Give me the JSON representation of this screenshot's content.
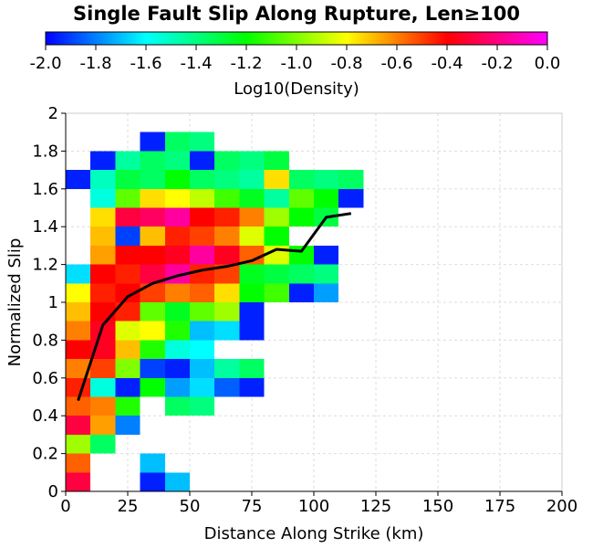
{
  "chart_data": {
    "type": "heatmap",
    "title": "Single Fault Slip Along Rupture, Len≥100",
    "xlabel": "Distance Along Strike (km)",
    "ylabel": "Normalized Slip",
    "colorbar": {
      "label": "Log10(Density)",
      "range": [
        -2.0,
        0.0
      ],
      "ticks": [
        "-2.0",
        "-1.8",
        "-1.6",
        "-1.4",
        "-1.2",
        "-1.0",
        "-0.8",
        "-0.6",
        "-0.4",
        "-0.2",
        "0.0"
      ],
      "colors": [
        "#0000ff",
        "#00ffff",
        "#00ff00",
        "#ffff00",
        "#ff0000",
        "#ff00ff"
      ]
    },
    "xlim": [
      0,
      200
    ],
    "ylim": [
      0,
      2
    ],
    "x_ticks": [
      "0",
      "25",
      "50",
      "75",
      "100",
      "125",
      "150",
      "175",
      "200"
    ],
    "y_ticks": [
      "0",
      "0.2",
      "0.4",
      "0.6",
      "0.8",
      "1",
      "1.2",
      "1.4",
      "1.6",
      "1.8",
      "2"
    ],
    "grid": true,
    "x_bin_width_km": 10,
    "y_bin_height": 0.1,
    "cell_unit_note": "each row: [y bin lower edge, [[x bin lower edge (km), log10 density], ...]]",
    "rows": [
      [
        0.0,
        [
          [
            0,
            -0.3
          ],
          [
            30,
            -1.95
          ],
          [
            40,
            -1.7
          ]
        ]
      ],
      [
        0.1,
        [
          [
            0,
            -0.55
          ],
          [
            30,
            -1.7
          ]
        ]
      ],
      [
        0.2,
        [
          [
            0,
            -0.95
          ],
          [
            10,
            -1.35
          ]
        ]
      ],
      [
        0.3,
        [
          [
            0,
            -0.3
          ],
          [
            10,
            -0.65
          ],
          [
            20,
            -1.8
          ]
        ]
      ],
      [
        0.4,
        [
          [
            0,
            -0.55
          ],
          [
            10,
            -0.6
          ],
          [
            20,
            -1.15
          ],
          [
            40,
            -1.35
          ],
          [
            50,
            -1.4
          ]
        ]
      ],
      [
        0.5,
        [
          [
            0,
            -0.45
          ],
          [
            10,
            -1.55
          ],
          [
            20,
            -1.95
          ],
          [
            30,
            -1.2
          ],
          [
            40,
            -1.75
          ],
          [
            50,
            -1.65
          ],
          [
            60,
            -1.85
          ],
          [
            70,
            -1.95
          ]
        ]
      ],
      [
        0.6,
        [
          [
            0,
            -0.6
          ],
          [
            10,
            -0.5
          ],
          [
            20,
            -1.0
          ],
          [
            30,
            -1.9
          ],
          [
            40,
            -1.95
          ],
          [
            50,
            -1.7
          ],
          [
            60,
            -1.45
          ],
          [
            70,
            -1.35
          ]
        ]
      ],
      [
        0.7,
        [
          [
            0,
            -0.4
          ],
          [
            10,
            -0.35
          ],
          [
            20,
            -0.7
          ],
          [
            30,
            -1.15
          ],
          [
            40,
            -1.55
          ],
          [
            50,
            -1.6
          ]
        ]
      ],
      [
        0.8,
        [
          [
            0,
            -0.6
          ],
          [
            10,
            -0.35
          ],
          [
            20,
            -0.85
          ],
          [
            30,
            -0.8
          ],
          [
            40,
            -1.15
          ],
          [
            50,
            -1.7
          ],
          [
            60,
            -1.65
          ],
          [
            70,
            -1.95
          ]
        ]
      ],
      [
        0.9,
        [
          [
            0,
            -0.7
          ],
          [
            10,
            -0.4
          ],
          [
            20,
            -0.45
          ],
          [
            30,
            -1.05
          ],
          [
            40,
            -1.25
          ],
          [
            50,
            -1.05
          ],
          [
            60,
            -0.95
          ],
          [
            70,
            -1.95
          ]
        ]
      ],
      [
        1.0,
        [
          [
            0,
            -0.8
          ],
          [
            10,
            -0.45
          ],
          [
            20,
            -0.4
          ],
          [
            30,
            -0.5
          ],
          [
            40,
            -0.6
          ],
          [
            50,
            -0.55
          ],
          [
            60,
            -0.75
          ],
          [
            70,
            -1.2
          ],
          [
            80,
            -1.1
          ],
          [
            90,
            -1.95
          ],
          [
            100,
            -1.75
          ]
        ]
      ],
      [
        1.1,
        [
          [
            0,
            -1.65
          ],
          [
            10,
            -0.4
          ],
          [
            20,
            -0.45
          ],
          [
            30,
            -0.3
          ],
          [
            40,
            -0.15
          ],
          [
            50,
            -0.45
          ],
          [
            60,
            -0.5
          ],
          [
            70,
            -1.25
          ],
          [
            80,
            -1.3
          ],
          [
            90,
            -1.35
          ],
          [
            100,
            -1.4
          ]
        ]
      ],
      [
        1.2,
        [
          [
            10,
            -0.65
          ],
          [
            20,
            -0.4
          ],
          [
            30,
            -0.4
          ],
          [
            40,
            -0.35
          ],
          [
            50,
            -0.15
          ],
          [
            60,
            -0.35
          ],
          [
            70,
            -0.55
          ],
          [
            80,
            -0.85
          ],
          [
            90,
            -1.2
          ],
          [
            100,
            -1.95
          ]
        ]
      ],
      [
        1.3,
        [
          [
            10,
            -0.7
          ],
          [
            20,
            -1.9
          ],
          [
            30,
            -0.7
          ],
          [
            40,
            -0.45
          ],
          [
            50,
            -0.5
          ],
          [
            60,
            -0.6
          ],
          [
            70,
            -0.85
          ],
          [
            80,
            -1.2
          ]
        ]
      ],
      [
        1.4,
        [
          [
            10,
            -0.75
          ],
          [
            20,
            -0.3
          ],
          [
            30,
            -0.25
          ],
          [
            40,
            -0.15
          ],
          [
            50,
            -0.4
          ],
          [
            60,
            -0.45
          ],
          [
            70,
            -0.6
          ],
          [
            80,
            -0.95
          ],
          [
            90,
            -1.2
          ],
          [
            100,
            -1.3
          ]
        ]
      ],
      [
        1.5,
        [
          [
            10,
            -1.55
          ],
          [
            20,
            -1.05
          ],
          [
            30,
            -0.75
          ],
          [
            40,
            -0.8
          ],
          [
            50,
            -0.9
          ],
          [
            60,
            -1.1
          ],
          [
            70,
            -1.25
          ],
          [
            80,
            -1.45
          ],
          [
            90,
            -1.05
          ],
          [
            100,
            -1.2
          ],
          [
            110,
            -1.95
          ]
        ]
      ],
      [
        1.6,
        [
          [
            0,
            -1.95
          ],
          [
            10,
            -1.5
          ],
          [
            20,
            -1.3
          ],
          [
            30,
            -1.35
          ],
          [
            40,
            -1.2
          ],
          [
            50,
            -1.35
          ],
          [
            60,
            -1.4
          ],
          [
            70,
            -1.45
          ],
          [
            80,
            -0.75
          ],
          [
            90,
            -1.35
          ],
          [
            100,
            -1.4
          ],
          [
            110,
            -1.35
          ]
        ]
      ],
      [
        1.7,
        [
          [
            10,
            -1.95
          ],
          [
            20,
            -1.45
          ],
          [
            30,
            -1.35
          ],
          [
            40,
            -1.4
          ],
          [
            50,
            -1.95
          ],
          [
            60,
            -1.35
          ],
          [
            70,
            -1.4
          ],
          [
            80,
            -1.3
          ]
        ]
      ],
      [
        1.8,
        [
          [
            30,
            -1.95
          ],
          [
            40,
            -1.35
          ],
          [
            50,
            -1.4
          ]
        ]
      ]
    ],
    "series": [
      {
        "type": "line",
        "color": "#000000",
        "x": [
          5,
          15,
          25,
          35,
          45,
          55,
          65,
          75,
          85,
          95,
          105,
          115
        ],
        "y": [
          0.48,
          0.88,
          1.03,
          1.1,
          1.14,
          1.17,
          1.19,
          1.22,
          1.28,
          1.27,
          1.45,
          1.47
        ]
      }
    ]
  }
}
